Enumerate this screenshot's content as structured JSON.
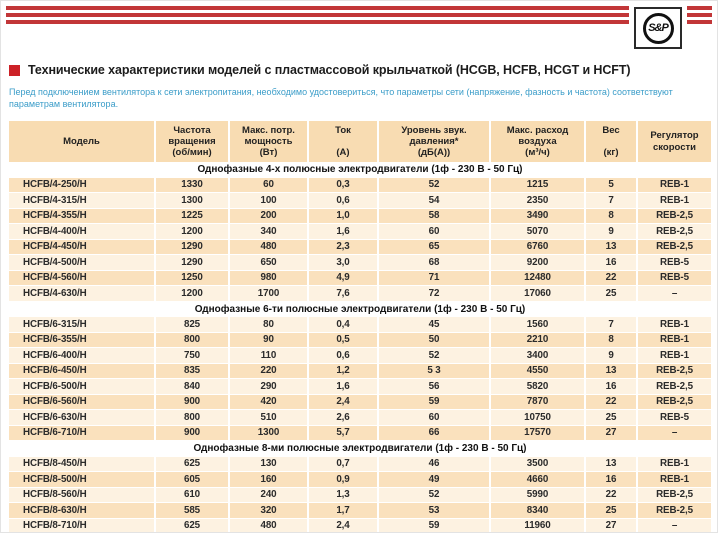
{
  "brand": {
    "logo_text": "S&P"
  },
  "title": {
    "text": "Технические характеристики моделей с пластмассовой крыльчаткой (HCGB, HCFB, HCGT и HCFT)"
  },
  "note": {
    "text": "Перед подключением вентилятора к сети электропитания, необходимо удостовериться, что параметры сети (напряжение, фазность и частота) соответствуют параметрам вентилятора."
  },
  "colors": {
    "stripe_red": "#c23638",
    "accent_red": "#cc2127",
    "note_blue": "#3b9dc9",
    "header_bg": "#f8dcb2",
    "row_dark": "#fae1bd",
    "row_light": "#fdf2e1",
    "text_dark": "#2b2b2b"
  },
  "table": {
    "columns": [
      {
        "key": "model",
        "title": "Модель",
        "unit": ""
      },
      {
        "key": "rpm",
        "title": "Частота вращения",
        "unit": "(об/мин)"
      },
      {
        "key": "power",
        "title": "Макс. потр. мощность",
        "unit": "(Вт)"
      },
      {
        "key": "current",
        "title": "Ток",
        "unit": "(А)"
      },
      {
        "key": "noise",
        "title": "Уровень звук. давления*",
        "unit": "(дБ(А))"
      },
      {
        "key": "airflow",
        "title": "Макс. расход воздуха",
        "unit": "(м³/ч)"
      },
      {
        "key": "weight",
        "title": "Вес",
        "unit": "(кг)"
      },
      {
        "key": "regulator",
        "title": "Регулятор скорости",
        "unit": ""
      }
    ],
    "sections": [
      {
        "heading": "Однофазные 4-х полюсные электродвигатели (1ф - 230 В - 50 Гц)",
        "first_row_shade": "dark",
        "rows": [
          [
            "HCFB/4-250/H",
            "1330",
            "60",
            "0,3",
            "52",
            "1215",
            "5",
            "REB-1"
          ],
          [
            "HCFB/4-315/H",
            "1300",
            "100",
            "0,6",
            "54",
            "2350",
            "7",
            "REB-1"
          ],
          [
            "HCFB/4-355/H",
            "1225",
            "200",
            "1,0",
            "58",
            "3490",
            "8",
            "REB-2,5"
          ],
          [
            "HCFB/4-400/H",
            "1200",
            "340",
            "1,6",
            "60",
            "5070",
            "9",
            "REB-2,5"
          ],
          [
            "HCFB/4-450/H",
            "1290",
            "480",
            "2,3",
            "65",
            "6760",
            "13",
            "REB-2,5"
          ],
          [
            "HCFB/4-500/H",
            "1290",
            "650",
            "3,0",
            "68",
            "9200",
            "16",
            "REB-5"
          ],
          [
            "HCFB/4-560/H",
            "1250",
            "980",
            "4,9",
            "71",
            "12480",
            "22",
            "REB-5"
          ],
          [
            "HCFB/4-630/H",
            "1200",
            "1700",
            "7,6",
            "72",
            "17060",
            "25",
            "–"
          ]
        ]
      },
      {
        "heading": "Однофазные 6-ти полюсные электродвигатели (1ф - 230 В - 50 Гц)",
        "first_row_shade": "light",
        "rows": [
          [
            "HCFB/6-315/H",
            "825",
            "80",
            "0,4",
            "45",
            "1560",
            "7",
            "REB-1"
          ],
          [
            "HCFB/6-355/H",
            "800",
            "90",
            "0,5",
            "50",
            "2210",
            "8",
            "REB-1"
          ],
          [
            "HCFB/6-400/H",
            "750",
            "110",
            "0,6",
            "52",
            "3400",
            "9",
            "REB-1"
          ],
          [
            "HCFB/6-450/H",
            "835",
            "220",
            "1,2",
            "5 3",
            "4550",
            "13",
            "REB-2,5"
          ],
          [
            "HCFB/6-500/H",
            "840",
            "290",
            "1,6",
            "56",
            "5820",
            "16",
            "REB-2,5"
          ],
          [
            "HCFB/6-560/H",
            "900",
            "420",
            "2,4",
            "59",
            "7870",
            "22",
            "REB-2,5"
          ],
          [
            "HCFB/6-630/H",
            "800",
            "510",
            "2,6",
            "60",
            "10750",
            "25",
            "REB-5"
          ],
          [
            "HCFB/6-710/H",
            "900",
            "1300",
            "5,7",
            "66",
            "17570",
            "27",
            "–"
          ]
        ]
      },
      {
        "heading": "Однофазные 8-ми полюсные электродвигатели (1ф - 230 В - 50 Гц)",
        "first_row_shade": "light",
        "rows": [
          [
            "HCFB/8-450/H",
            "625",
            "130",
            "0,7",
            "46",
            "3500",
            "13",
            "REB-1"
          ],
          [
            "HCFB/8-500/H",
            "605",
            "160",
            "0,9",
            "49",
            "4660",
            "16",
            "REB-1"
          ],
          [
            "HCFB/8-560/H",
            "610",
            "240",
            "1,3",
            "52",
            "5990",
            "22",
            "REB-2,5"
          ],
          [
            "HCFB/8-630/H",
            "585",
            "320",
            "1,7",
            "53",
            "8340",
            "25",
            "REB-2,5"
          ],
          [
            "HCFB/8-710/H",
            "625",
            "480",
            "2,4",
            "59",
            "11960",
            "27",
            "–"
          ]
        ]
      }
    ]
  }
}
